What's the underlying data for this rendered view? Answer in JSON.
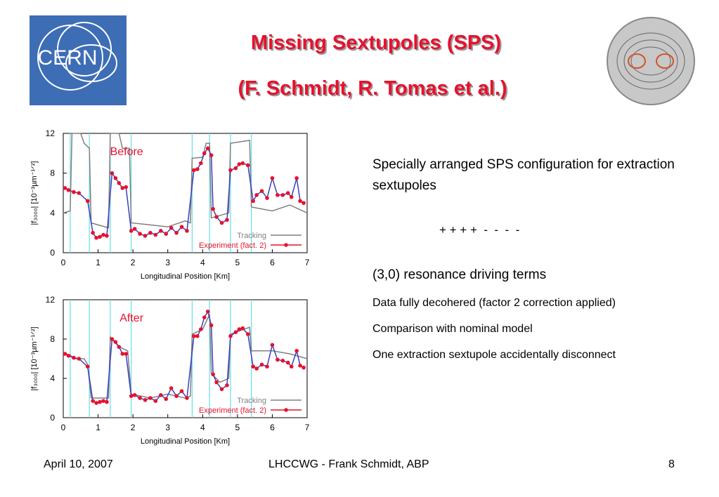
{
  "header": {
    "title": "Missing Sextupoles (SPS)",
    "subtitle": "(F. Schmidt, R. Tomas et al.)",
    "logo_text": "CERN"
  },
  "chart_data": [
    {
      "type": "line",
      "annotation": "Before",
      "xlabel": "Longitudinal Position [Km]",
      "ylabel": "|f₃₀₀₀| [10⁻³µm⁻¹ᐟ²]",
      "xlim": [
        0,
        7
      ],
      "ylim": [
        0,
        12
      ],
      "xticks": [
        0,
        1,
        2,
        3,
        4,
        5,
        6,
        7
      ],
      "yticks": [
        0,
        4,
        8,
        12
      ],
      "reference_x": [
        0.2,
        0.75,
        1.35,
        1.95,
        3.7,
        4.2,
        4.8,
        5.4
      ],
      "reference_color": "#66e0e8",
      "legend": "lower right",
      "series": [
        {
          "name": "Tracking",
          "color": "#808080",
          "x": [
            0,
            0.2,
            0.25,
            0.5,
            0.6,
            0.75,
            0.8,
            1.3,
            1.35,
            1.6,
            1.7,
            1.9,
            1.95,
            2.5,
            3.0,
            3.5,
            3.65,
            3.7,
            4.0,
            4.1,
            4.2,
            4.25,
            4.75,
            4.8,
            5.35,
            5.4,
            6.0,
            6.5,
            7.0
          ],
          "values": [
            4.0,
            4.2,
            12,
            12,
            11,
            10.5,
            3,
            2.5,
            12,
            12,
            10.5,
            10.5,
            3,
            2.8,
            2.6,
            3.2,
            3,
            9.5,
            9.6,
            11,
            11,
            3.5,
            4,
            11,
            11.3,
            4.6,
            4.2,
            4.8,
            4.0
          ]
        },
        {
          "name": "Experiment (fact. 2)",
          "color": "#e8112d",
          "line_color": "#3a3fc0",
          "x": [
            0.05,
            0.15,
            0.3,
            0.45,
            0.7,
            0.85,
            0.95,
            1.05,
            1.15,
            1.25,
            1.4,
            1.5,
            1.6,
            1.7,
            1.8,
            1.95,
            2.05,
            2.2,
            2.35,
            2.5,
            2.65,
            2.8,
            2.95,
            3.1,
            3.25,
            3.4,
            3.55,
            3.75,
            3.85,
            3.95,
            4.05,
            4.15,
            4.25,
            4.3,
            4.4,
            4.55,
            4.7,
            4.8,
            4.95,
            5.05,
            5.15,
            5.3,
            5.45,
            5.55,
            5.7,
            5.85,
            6.0,
            6.15,
            6.3,
            6.45,
            6.55,
            6.7,
            6.8,
            6.9
          ],
          "values": [
            6.5,
            6.3,
            6.1,
            6.0,
            5.2,
            2.0,
            1.5,
            1.6,
            1.8,
            1.7,
            8.0,
            7.5,
            7.0,
            6.5,
            6.6,
            2.2,
            2.4,
            1.9,
            1.7,
            2.0,
            1.8,
            2.2,
            1.9,
            2.5,
            2.0,
            2.6,
            2.2,
            8.3,
            8.4,
            9.0,
            10.0,
            10.5,
            9.8,
            4.4,
            3.6,
            3.0,
            3.3,
            8.3,
            8.5,
            8.9,
            9.0,
            8.8,
            5.2,
            5.8,
            6.2,
            5.5,
            7.5,
            5.8,
            5.8,
            6.0,
            5.6,
            7.5,
            5.2,
            5.0
          ]
        }
      ]
    },
    {
      "type": "line",
      "annotation": "After",
      "xlabel": "Longitudinal Position [Km]",
      "ylabel": "|f₃₀₀₀| [10⁻³µm⁻¹ᐟ²]",
      "xlim": [
        0,
        7
      ],
      "ylim": [
        0,
        12
      ],
      "xticks": [
        0,
        1,
        2,
        3,
        4,
        5,
        6,
        7
      ],
      "yticks": [
        0,
        4,
        8,
        12
      ],
      "reference_x": [
        0.2,
        0.75,
        1.35,
        1.95,
        3.7,
        4.2,
        4.8,
        5.4
      ],
      "reference_color": "#66e0e8",
      "legend": "lower right",
      "series": [
        {
          "name": "Tracking",
          "color": "#808080",
          "x": [
            0,
            0.2,
            0.3,
            0.6,
            0.7,
            0.8,
            1.3,
            1.35,
            1.6,
            1.85,
            1.95,
            2.5,
            3.0,
            3.5,
            3.65,
            3.7,
            4.0,
            4.2,
            4.25,
            4.5,
            4.75,
            4.8,
            5.35,
            5.4,
            6.0,
            6.5,
            7.0
          ],
          "values": [
            6.5,
            6.4,
            6.0,
            6.0,
            5.4,
            2.0,
            2.0,
            8.2,
            7.2,
            6.8,
            2.4,
            2.0,
            2.4,
            2.0,
            2.2,
            8.5,
            9.0,
            10.5,
            4.5,
            3.6,
            4.0,
            8.5,
            9.2,
            6.8,
            6.8,
            6.5,
            6.0
          ]
        },
        {
          "name": "Experiment (fact. 2)",
          "color": "#e8112d",
          "line_color": "#3a3fc0",
          "x": [
            0.05,
            0.15,
            0.3,
            0.45,
            0.7,
            0.85,
            0.95,
            1.05,
            1.15,
            1.25,
            1.4,
            1.5,
            1.6,
            1.7,
            1.8,
            1.95,
            2.05,
            2.2,
            2.35,
            2.5,
            2.65,
            2.8,
            2.95,
            3.1,
            3.25,
            3.4,
            3.55,
            3.75,
            3.85,
            3.95,
            4.05,
            4.15,
            4.25,
            4.3,
            4.4,
            4.55,
            4.7,
            4.8,
            4.95,
            5.05,
            5.15,
            5.3,
            5.45,
            5.55,
            5.7,
            5.85,
            6.0,
            6.15,
            6.3,
            6.45,
            6.55,
            6.7,
            6.8,
            6.9
          ],
          "values": [
            6.5,
            6.3,
            6.1,
            6.0,
            5.2,
            1.7,
            1.5,
            1.6,
            1.7,
            1.6,
            8.0,
            7.7,
            7.2,
            6.5,
            6.5,
            2.2,
            2.3,
            2.0,
            1.8,
            2.0,
            1.7,
            2.3,
            1.9,
            3.0,
            2.2,
            2.7,
            2.0,
            8.3,
            8.3,
            9.0,
            10.2,
            10.8,
            9.4,
            4.4,
            3.6,
            2.9,
            3.3,
            8.3,
            8.7,
            9.0,
            9.1,
            8.5,
            5.2,
            5.0,
            5.4,
            5.2,
            7.4,
            5.9,
            5.8,
            5.6,
            5.2,
            6.8,
            5.3,
            5.1
          ]
        }
      ]
    }
  ],
  "text": {
    "description": "Specially arranged SPS configuration for extraction sextupoles",
    "pattern": "+ + + +  -  -  -  -",
    "heading": "(3,0) resonance driving terms",
    "points": [
      "Data fully decohered (factor 2 correction applied)",
      "Comparison with nominal model",
      "One extraction sextupole accidentally disconnect"
    ]
  },
  "footer": {
    "date": "April 10, 2007",
    "event": "LHCCWG - Frank Schmidt, ABP",
    "page": "8"
  }
}
